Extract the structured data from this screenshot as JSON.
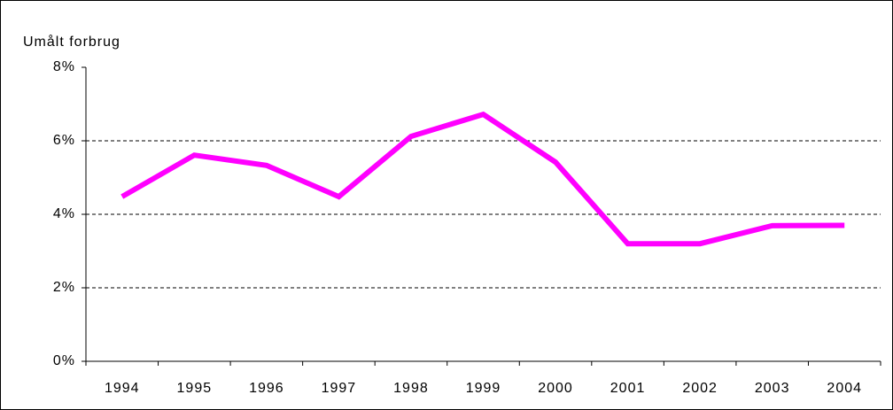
{
  "chart_data": {
    "type": "line",
    "y_label": "Umålt forbrug",
    "categories": [
      "1994",
      "1995",
      "1996",
      "1997",
      "1998",
      "1999",
      "2000",
      "2001",
      "2002",
      "2003",
      "2004"
    ],
    "series": [
      {
        "name": "Umålt forbrug",
        "color": "#ff00ff",
        "values": [
          4.48,
          5.61,
          5.33,
          4.48,
          6.12,
          6.72,
          5.42,
          3.2,
          3.2,
          3.69,
          3.7
        ]
      }
    ],
    "ylim": [
      0,
      8
    ],
    "yticks": [
      {
        "value": 0,
        "label": "0%"
      },
      {
        "value": 2,
        "label": "2%"
      },
      {
        "value": 4,
        "label": "4%"
      },
      {
        "value": 6,
        "label": "6%"
      },
      {
        "value": 8,
        "label": "8%"
      }
    ],
    "grid": true
  }
}
